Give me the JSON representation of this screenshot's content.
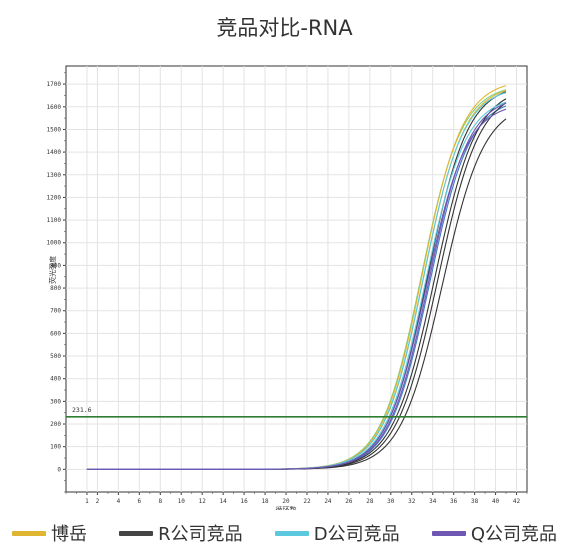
{
  "page_title": "竞品对比-RNA",
  "chart_data": {
    "type": "line",
    "title": "竞品对比-RNA",
    "xlabel": "循环数",
    "ylabel": "荧光强度",
    "xlim": [
      -1,
      43
    ],
    "ylim": [
      -100,
      1780
    ],
    "x_ticks": [
      1,
      2,
      4,
      6,
      8,
      10,
      12,
      14,
      16,
      18,
      20,
      22,
      24,
      26,
      28,
      30,
      32,
      34,
      36,
      38,
      40,
      42
    ],
    "y_ticks": [
      0,
      100,
      200,
      300,
      400,
      500,
      600,
      700,
      800,
      900,
      1000,
      1100,
      1200,
      1300,
      1400,
      1500,
      1600,
      1700
    ],
    "grid": true,
    "threshold": {
      "value": 231.6,
      "label": "231.6",
      "color": "#2e7d32"
    },
    "series": [
      {
        "name": "博岳",
        "color": "#e0b531",
        "curves": [
          {
            "max": 1720,
            "mid": 33.0,
            "slope": 0.52
          },
          {
            "max": 1700,
            "mid": 33.15,
            "slope": 0.52
          }
        ]
      },
      {
        "name": "R公司竞品",
        "color": "#333333",
        "curves": [
          {
            "max": 1690,
            "mid": 34.2,
            "slope": 0.5
          },
          {
            "max": 1680,
            "mid": 34.5,
            "slope": 0.5
          },
          {
            "max": 1620,
            "mid": 34.9,
            "slope": 0.5
          },
          {
            "max": 1700,
            "mid": 33.5,
            "slope": 0.52
          }
        ]
      },
      {
        "name": "D公司竞品",
        "color": "#5bc8dd",
        "curves": [
          {
            "max": 1690,
            "mid": 33.1,
            "slope": 0.52
          },
          {
            "max": 1650,
            "mid": 33.3,
            "slope": 0.52
          }
        ]
      },
      {
        "name": "Q公司竞品",
        "color": "#6d57b3",
        "curves": [
          {
            "max": 1620,
            "mid": 33.4,
            "slope": 0.52
          },
          {
            "max": 1650,
            "mid": 33.6,
            "slope": 0.52
          }
        ]
      }
    ],
    "extra_curves": [
      {
        "color": "#7fd07f",
        "max": 1700,
        "mid": 32.9,
        "slope": 0.52
      },
      {
        "color": "#3f7bc4",
        "max": 1640,
        "mid": 33.7,
        "slope": 0.52
      }
    ],
    "x_start": 1,
    "x_end": 41
  },
  "legend": [
    {
      "label": "博岳",
      "color": "#e0b531"
    },
    {
      "label": "R公司竞品",
      "color": "#444444"
    },
    {
      "label": "D公司竞品",
      "color": "#5bc8dd"
    },
    {
      "label": "Q公司竞品",
      "color": "#6d57b3"
    }
  ]
}
